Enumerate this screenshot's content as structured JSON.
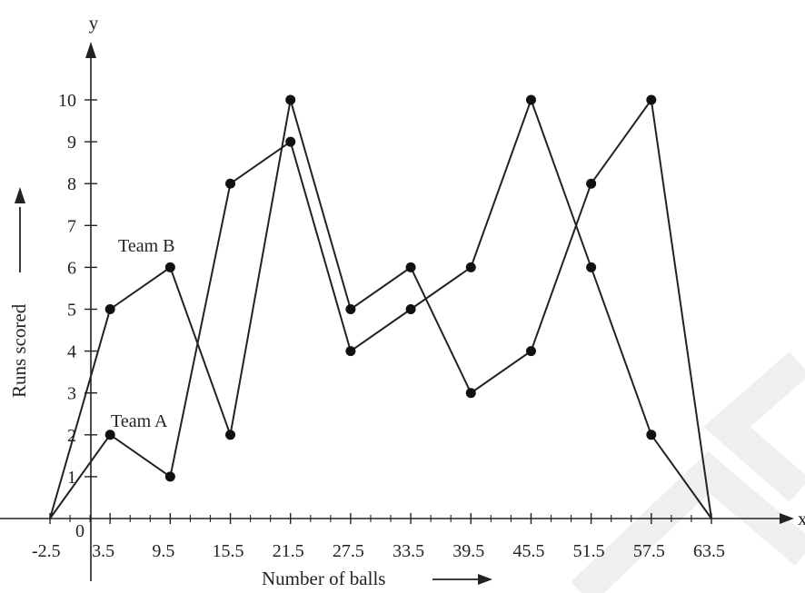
{
  "chart_data": {
    "type": "line",
    "title": "",
    "xlabel": "Number of balls",
    "ylabel": "Runs scored",
    "x_axis_letter": "x",
    "y_axis_letter": "y",
    "origin_label": "0",
    "x_ticks": [
      -2.5,
      3.5,
      9.5,
      15.5,
      21.5,
      27.5,
      33.5,
      39.5,
      45.5,
      51.5,
      57.5,
      63.5
    ],
    "x_tick_labels": [
      "-2.5",
      "3.5",
      "9.5",
      "15.5",
      "21.5",
      "27.5",
      "33.5",
      "39.5",
      "45.5",
      "51.5",
      "57.5",
      "63.5"
    ],
    "y_ticks": [
      1,
      2,
      3,
      4,
      5,
      6,
      7,
      8,
      9,
      10
    ],
    "y_tick_labels": [
      "1",
      "2",
      "3",
      "4",
      "5",
      "6",
      "7",
      "8",
      "9",
      "10"
    ],
    "xlim": [
      -6.5,
      70
    ],
    "ylim": [
      -1.6,
      12
    ],
    "grid": false,
    "series": [
      {
        "name": "Team A",
        "x": [
          -2.5,
          3.5,
          9.5,
          15.5,
          21.5,
          27.5,
          33.5,
          39.5,
          45.5,
          51.5,
          57.5,
          63.5
        ],
        "y": [
          0,
          2,
          1,
          8,
          9,
          4,
          5,
          6,
          10,
          6,
          2,
          0
        ]
      },
      {
        "name": "Team B",
        "x": [
          -2.5,
          3.5,
          9.5,
          15.5,
          21.5,
          27.5,
          33.5,
          39.5,
          45.5,
          51.5,
          57.5,
          63.5
        ],
        "y": [
          0,
          5,
          6,
          2,
          10,
          5,
          6,
          3,
          4,
          8,
          10,
          0
        ]
      }
    ],
    "colors": {
      "line": "#222222",
      "marker": "#111111",
      "watermark": "#eeeeee"
    }
  }
}
